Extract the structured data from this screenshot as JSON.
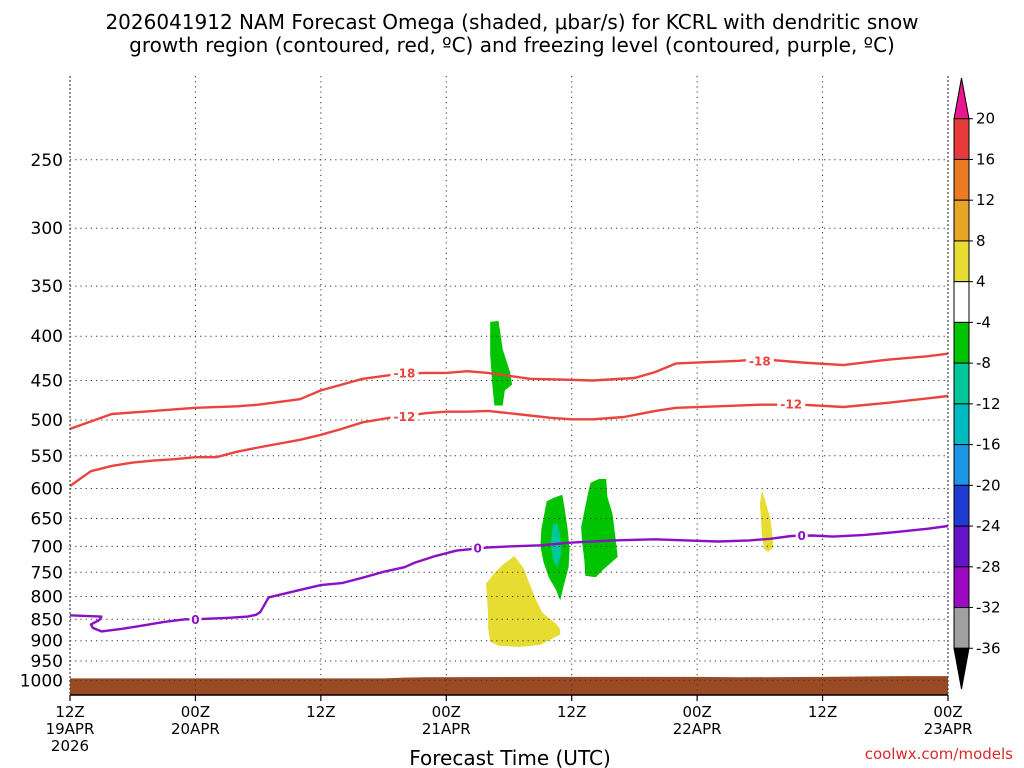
{
  "chart_data": {
    "type": "heatmap",
    "title_lines": [
      "2026041912 NAM Forecast Omega (shaded, μbar/s) for KCRL with dendritic snow",
      "growth region (contoured, red, ºC) and freezing level (contoured, purple, ºC)"
    ],
    "xlabel": "Forecast Time (UTC)",
    "credit": "coolwx.com/models",
    "x_range_hours": [
      0,
      84
    ],
    "x_ticks": [
      {
        "hour": 0,
        "lines": [
          "12Z",
          "19APR",
          "2026"
        ]
      },
      {
        "hour": 12,
        "lines": [
          "00Z",
          "20APR"
        ]
      },
      {
        "hour": 24,
        "lines": [
          "12Z"
        ]
      },
      {
        "hour": 36,
        "lines": [
          "00Z",
          "21APR"
        ]
      },
      {
        "hour": 48,
        "lines": [
          "12Z"
        ]
      },
      {
        "hour": 60,
        "lines": [
          "00Z",
          "22APR"
        ]
      },
      {
        "hour": 72,
        "lines": [
          "12Z"
        ]
      },
      {
        "hour": 84,
        "lines": [
          "00Z",
          "23APR"
        ]
      }
    ],
    "y_ticks": [
      250,
      300,
      350,
      400,
      450,
      500,
      550,
      600,
      650,
      700,
      750,
      800,
      850,
      900,
      950,
      1000
    ],
    "pressure_range_hPa": [
      200,
      1040
    ],
    "ground_pressure": [
      [
        0,
        995
      ],
      [
        30,
        995
      ],
      [
        32,
        993
      ],
      [
        34,
        992
      ],
      [
        46,
        991
      ],
      [
        60,
        991
      ],
      [
        64,
        992
      ],
      [
        72,
        991
      ],
      [
        80,
        989
      ],
      [
        84,
        989
      ]
    ],
    "contours": [
      {
        "name": "-18C",
        "label": "-18",
        "color": "#ea4440",
        "points": [
          [
            0,
            512
          ],
          [
            4,
            492
          ],
          [
            8,
            488
          ],
          [
            12,
            484
          ],
          [
            16,
            482
          ],
          [
            18,
            480
          ],
          [
            22,
            473
          ],
          [
            24,
            462
          ],
          [
            28,
            448
          ],
          [
            31,
            443
          ],
          [
            32,
            442
          ],
          [
            34,
            441
          ],
          [
            36,
            441
          ],
          [
            38,
            439
          ],
          [
            40,
            441
          ],
          [
            44,
            448
          ],
          [
            47,
            449
          ],
          [
            50,
            450
          ],
          [
            54,
            447
          ],
          [
            56,
            440
          ],
          [
            58,
            430
          ],
          [
            64,
            427
          ],
          [
            66,
            425
          ],
          [
            70,
            429
          ],
          [
            74,
            432
          ],
          [
            78,
            426
          ],
          [
            82,
            422
          ],
          [
            84,
            419
          ]
        ],
        "label_positions": [
          [
            32,
            441
          ],
          [
            66,
            427
          ]
        ]
      },
      {
        "name": "-12C",
        "label": "-12",
        "color": "#ea4440",
        "points": [
          [
            0,
            596
          ],
          [
            2,
            573
          ],
          [
            4,
            565
          ],
          [
            6,
            560
          ],
          [
            8,
            557
          ],
          [
            10,
            555
          ],
          [
            12,
            552
          ],
          [
            14,
            552
          ],
          [
            16,
            544
          ],
          [
            18,
            538
          ],
          [
            22,
            527
          ],
          [
            24,
            520
          ],
          [
            26,
            512
          ],
          [
            28,
            503
          ],
          [
            31,
            496
          ],
          [
            32,
            495
          ],
          [
            34,
            491
          ],
          [
            36,
            489
          ],
          [
            38,
            489
          ],
          [
            40,
            488
          ],
          [
            42,
            491
          ],
          [
            44,
            494
          ],
          [
            46,
            497
          ],
          [
            48,
            499
          ],
          [
            50,
            499
          ],
          [
            53,
            496
          ],
          [
            56,
            488
          ],
          [
            58,
            484
          ],
          [
            62,
            482
          ],
          [
            66,
            480
          ],
          [
            70,
            480
          ],
          [
            74,
            483
          ],
          [
            78,
            478
          ],
          [
            82,
            472
          ],
          [
            84,
            469
          ]
        ],
        "label_positions": [
          [
            32,
            495
          ],
          [
            69,
            479
          ]
        ]
      },
      {
        "name": "0C",
        "label": "0",
        "color": "#8a10c4",
        "points": [
          [
            0,
            841
          ],
          [
            2,
            843
          ],
          [
            3,
            844
          ],
          [
            2.8,
            852
          ],
          [
            2.3,
            858
          ],
          [
            2.0,
            862
          ],
          [
            2.2,
            870
          ],
          [
            3.0,
            878
          ],
          [
            5,
            872
          ],
          [
            7,
            864
          ],
          [
            9,
            856
          ],
          [
            11,
            850
          ],
          [
            12,
            850
          ],
          [
            13,
            849
          ],
          [
            15,
            847
          ],
          [
            17,
            844
          ],
          [
            17.8,
            840
          ],
          [
            18.2,
            834
          ],
          [
            18.5,
            822
          ],
          [
            19,
            802
          ],
          [
            22,
            786
          ],
          [
            24,
            776
          ],
          [
            26,
            772
          ],
          [
            28,
            761
          ],
          [
            30,
            749
          ],
          [
            32,
            740
          ],
          [
            33,
            731
          ],
          [
            35,
            718
          ],
          [
            37,
            708
          ],
          [
            40,
            702
          ],
          [
            42,
            700
          ],
          [
            45,
            698
          ],
          [
            48,
            693
          ],
          [
            52,
            689
          ],
          [
            56,
            687
          ],
          [
            59,
            689
          ],
          [
            62,
            691
          ],
          [
            65,
            689
          ],
          [
            67,
            686
          ],
          [
            69,
            681
          ],
          [
            71,
            680
          ],
          [
            73,
            682
          ],
          [
            76,
            679
          ],
          [
            79,
            674
          ],
          [
            82,
            668
          ],
          [
            84,
            663
          ]
        ],
        "label_positions": [
          [
            12,
            850
          ],
          [
            39,
            703
          ],
          [
            70,
            680
          ]
        ]
      }
    ],
    "omega_shading": [
      {
        "value_range": "-8 to -4",
        "color": "#00c400",
        "polygon": [
          [
            40.2,
            385
          ],
          [
            41.0,
            384
          ],
          [
            41.4,
            414
          ],
          [
            42.1,
            440
          ],
          [
            42.3,
            455
          ],
          [
            41.6,
            462
          ],
          [
            41.4,
            481
          ],
          [
            40.6,
            481
          ],
          [
            40.4,
            455
          ],
          [
            40.2,
            420
          ]
        ]
      },
      {
        "value_range": "-8 to -4",
        "color": "#00c400",
        "polygon": [
          [
            45.6,
            621
          ],
          [
            46.3,
            615
          ],
          [
            47.1,
            610
          ],
          [
            47.3,
            630
          ],
          [
            47.6,
            666
          ],
          [
            47.8,
            705
          ],
          [
            47.7,
            740
          ],
          [
            47.3,
            772
          ],
          [
            46.9,
            808
          ],
          [
            46.5,
            786
          ],
          [
            45.8,
            760
          ],
          [
            45.3,
            730
          ],
          [
            45.0,
            700
          ],
          [
            45.1,
            668
          ],
          [
            45.4,
            640
          ]
        ]
      },
      {
        "value_range": "-8 to -4",
        "color": "#00c400",
        "polygon": [
          [
            49.8,
            591
          ],
          [
            50.6,
            585
          ],
          [
            51.3,
            585
          ],
          [
            51.4,
            613
          ],
          [
            51.9,
            642
          ],
          [
            52.2,
            686
          ],
          [
            52.4,
            720
          ],
          [
            51.0,
            745
          ],
          [
            50.3,
            760
          ],
          [
            49.3,
            757
          ],
          [
            49.2,
            725
          ],
          [
            49.0,
            694
          ],
          [
            48.9,
            665
          ],
          [
            49.3,
            630
          ],
          [
            49.6,
            605
          ]
        ]
      },
      {
        "value_range": "-12 to -8",
        "color": "#00c89a",
        "polygon": [
          [
            46.2,
            660
          ],
          [
            46.6,
            658
          ],
          [
            46.9,
            680
          ],
          [
            47.0,
            715
          ],
          [
            46.6,
            740
          ],
          [
            46.2,
            725
          ],
          [
            46.0,
            695
          ]
        ]
      },
      {
        "value_range": "4 to 8",
        "color": "#e6dc32",
        "polygon": [
          [
            42.0,
            726
          ],
          [
            42.5,
            718
          ],
          [
            43.4,
            742
          ],
          [
            44.0,
            775
          ],
          [
            44.6,
            808
          ],
          [
            45.2,
            835
          ],
          [
            46.0,
            851
          ],
          [
            46.5,
            860
          ],
          [
            46.9,
            873
          ],
          [
            46.9,
            885
          ],
          [
            45.0,
            910
          ],
          [
            43.0,
            915
          ],
          [
            41.0,
            912
          ],
          [
            40.2,
            902
          ],
          [
            40.0,
            870
          ],
          [
            40.0,
            840
          ],
          [
            39.9,
            800
          ],
          [
            39.8,
            773
          ],
          [
            40.6,
            752
          ],
          [
            41.4,
            735
          ]
        ]
      },
      {
        "value_range": "4 to 8",
        "color": "#e6dc32",
        "polygon": [
          [
            66.2,
            603
          ],
          [
            66.6,
            625
          ],
          [
            67.0,
            650
          ],
          [
            67.2,
            680
          ],
          [
            67.3,
            702
          ],
          [
            66.8,
            710
          ],
          [
            66.4,
            705
          ],
          [
            66.2,
            680
          ],
          [
            66.1,
            650
          ],
          [
            66.0,
            625
          ]
        ]
      }
    ],
    "colorbar": {
      "labels": [
        "20",
        "16",
        "12",
        "8",
        "4",
        "-4",
        "-8",
        "-12",
        "-16",
        "-20",
        "-24",
        "-28",
        "-32",
        "-36"
      ],
      "colors": [
        "#e8178f",
        "#e73a3a",
        "#ea7b22",
        "#e6a728",
        "#e8dd33",
        "#ffffff",
        "#00c400",
        "#00c89a",
        "#00bcc0",
        "#1e96e6",
        "#1e3cd2",
        "#6414c8",
        "#9c0ac4",
        "#a0a0a0",
        "#000000"
      ]
    }
  }
}
